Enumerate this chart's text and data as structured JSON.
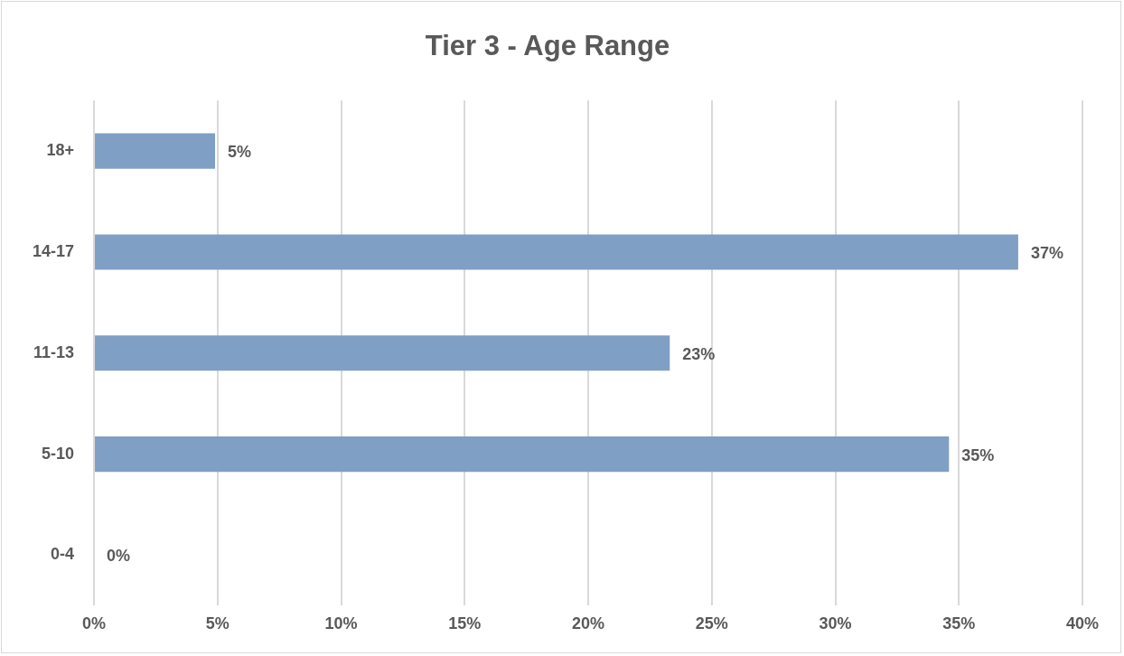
{
  "chart_data": {
    "type": "bar",
    "orientation": "horizontal",
    "title": "Tier 3 - Age Range",
    "categories": [
      "18+",
      "14-17",
      "11-13",
      "5-10",
      "0-4"
    ],
    "values": [
      4.9,
      37.4,
      23.3,
      34.6,
      0
    ],
    "value_labels": [
      "5%",
      "37%",
      "23%",
      "35%",
      "0%"
    ],
    "color": "#7f9fc4",
    "xlim": [
      0,
      40
    ],
    "xticks": [
      {
        "value": 0,
        "label": "0%"
      },
      {
        "value": 5,
        "label": "5%"
      },
      {
        "value": 10,
        "label": "10%"
      },
      {
        "value": 15,
        "label": "15%"
      },
      {
        "value": 20,
        "label": "20%"
      },
      {
        "value": 25,
        "label": "25%"
      },
      {
        "value": 30,
        "label": "30%"
      },
      {
        "value": 35,
        "label": "35%"
      },
      {
        "value": 40,
        "label": "40%"
      }
    ],
    "grid": "x",
    "legend": false
  }
}
